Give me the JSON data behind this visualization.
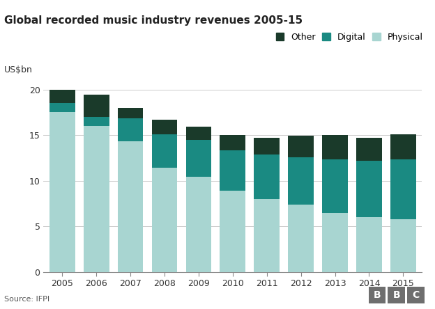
{
  "title": "Global recorded music industry revenues 2005-15",
  "ylabel": "US$bn",
  "source": "Source: IFPI",
  "years": [
    2005,
    2006,
    2007,
    2008,
    2009,
    2010,
    2011,
    2012,
    2013,
    2014,
    2015
  ],
  "physical": [
    17.5,
    16.0,
    14.3,
    11.4,
    10.4,
    8.9,
    8.0,
    7.4,
    6.5,
    6.0,
    5.8
  ],
  "digital": [
    1.0,
    1.0,
    2.5,
    3.7,
    4.1,
    4.4,
    4.9,
    5.2,
    5.8,
    6.2,
    6.5
  ],
  "other": [
    1.5,
    2.4,
    1.2,
    1.6,
    1.4,
    1.7,
    1.8,
    2.3,
    2.7,
    2.5,
    2.8
  ],
  "color_physical": "#a8d5d1",
  "color_digital": "#1a8a82",
  "color_other": "#1a3a2a",
  "ylim": [
    0,
    21
  ],
  "yticks": [
    0,
    5,
    10,
    15,
    20
  ],
  "background_color": "#ffffff",
  "grid_color": "#cccccc",
  "bar_width": 0.75,
  "legend_labels": [
    "Other",
    "Digital",
    "Physical"
  ],
  "legend_colors": [
    "#1a3a2a",
    "#1a8a82",
    "#a8d5d1"
  ]
}
